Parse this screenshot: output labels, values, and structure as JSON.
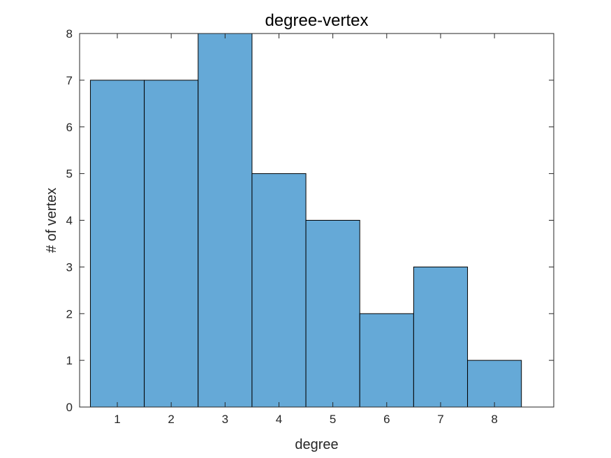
{
  "chart_data": {
    "type": "bar",
    "title": "degree-vertex",
    "xlabel": "degree",
    "ylabel": "# of vertex",
    "categories": [
      "1",
      "2",
      "3",
      "4",
      "5",
      "6",
      "7",
      "8"
    ],
    "values": [
      7,
      7,
      8,
      5,
      4,
      2,
      3,
      1
    ],
    "xlim": [
      0.3,
      9.1
    ],
    "ylim": [
      0,
      8
    ],
    "yticks": [
      "0",
      "1",
      "2",
      "3",
      "4",
      "5",
      "6",
      "7",
      "8"
    ],
    "grid": false,
    "bar_color": "#65a9d7",
    "edge_color": "#000000",
    "axis_color": "#262626"
  }
}
